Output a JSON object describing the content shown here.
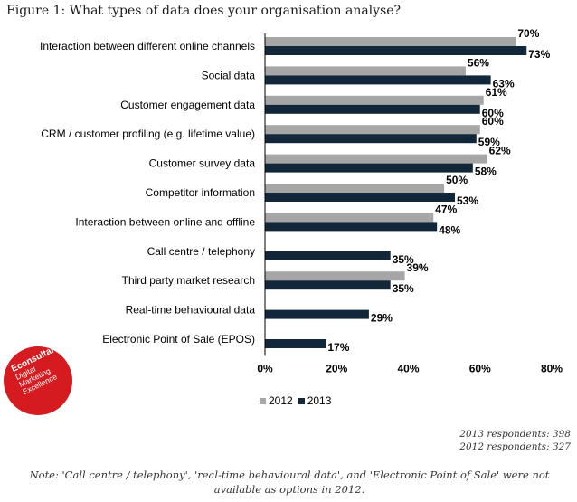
{
  "figure": {
    "title": "Figure 1: What types of data does your organisation analyse?"
  },
  "chart_data": {
    "type": "bar",
    "orientation": "horizontal",
    "title": "Figure 1: What types of data does your organisation analyse?",
    "categories": [
      "Interaction between different online channels",
      "Social data",
      "Customer engagement data",
      "CRM / customer profiling (e.g. lifetime value)",
      "Customer survey data",
      "Competitor information",
      "Interaction between online and offline",
      "Call centre / telephony",
      "Third party market research",
      "Real-time behavioural data",
      "Electronic Point of Sale (EPOS)"
    ],
    "series": [
      {
        "name": "2012",
        "color": "#a6a6a6",
        "values": [
          70,
          56,
          61,
          60,
          62,
          50,
          47,
          null,
          39,
          null,
          null
        ]
      },
      {
        "name": "2013",
        "color": "#12283a",
        "values": [
          73,
          63,
          60,
          59,
          58,
          53,
          48,
          35,
          35,
          29,
          17
        ]
      }
    ],
    "xlim": [
      0,
      80
    ],
    "xticks": [
      0,
      20,
      40,
      60,
      80
    ],
    "tick_format": "%",
    "grid": false,
    "legend": "bottom"
  },
  "legend": {
    "items": [
      {
        "label": "2012",
        "color": "#a6a6a6"
      },
      {
        "label": "2013",
        "color": "#12283a"
      }
    ]
  },
  "respondents": {
    "line_2013": "2013 respondents: 398",
    "line_2012": "2012 respondents: 327"
  },
  "note": "Note: 'Call centre / telephony', 'real-time behavioural data', and 'Electronic Point of Sale' were not available as options in 2012.",
  "logo": {
    "name": "Econsultancy",
    "tagline_1": "Digital",
    "tagline_2": "Marketing",
    "tagline_3": "Excellence",
    "color": "#d51b1f"
  }
}
